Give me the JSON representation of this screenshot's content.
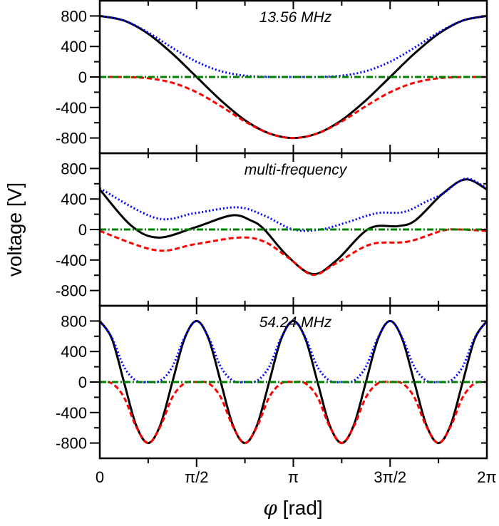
{
  "chart_data": [
    {
      "type": "line",
      "title": "13.56 MHz",
      "x_unit": "pi rad",
      "ylim": [
        -1000,
        1000
      ],
      "series": [
        {
          "color": "#000000",
          "style": "solid",
          "x": [
            0,
            0.125,
            0.25,
            0.375,
            0.5,
            0.625,
            0.75,
            0.875,
            1,
            1.125,
            1.25,
            1.375,
            1.5,
            1.625,
            1.75,
            1.875,
            2
          ],
          "y": [
            800,
            739,
            566,
            306,
            0,
            -306,
            -566,
            -739,
            -800,
            -739,
            -566,
            -306,
            0,
            306,
            566,
            739,
            800
          ]
        },
        {
          "color": "#0000ff",
          "style": "dotted",
          "x": [
            0,
            0.125,
            0.25,
            0.375,
            0.5,
            0.625,
            0.75,
            0.875,
            1,
            1.125,
            1.25,
            1.375,
            1.5,
            1.625,
            1.75,
            1.875,
            2
          ],
          "y": [
            800,
            740,
            583,
            382,
            200,
            76,
            17,
            1,
            0,
            1,
            17,
            76,
            200,
            382,
            583,
            740,
            800
          ]
        },
        {
          "color": "#ff0000",
          "style": "dashed",
          "x": [
            0,
            0.125,
            0.25,
            0.375,
            0.5,
            0.625,
            0.75,
            0.875,
            1,
            1.125,
            1.25,
            1.375,
            1.5,
            1.625,
            1.75,
            1.875,
            2
          ],
          "y": [
            0,
            -1,
            -17,
            -76,
            -200,
            -382,
            -583,
            -740,
            -800,
            -740,
            -583,
            -382,
            -200,
            -76,
            -17,
            -1,
            0
          ]
        },
        {
          "color": "#008000",
          "style": "dashdot",
          "x": [
            0,
            2
          ],
          "y": [
            0,
            0
          ]
        }
      ]
    },
    {
      "type": "line",
      "title": "multi-frequency",
      "x_unit": "pi rad",
      "ylim": [
        -1000,
        1000
      ],
      "series": [
        {
          "color": "#000000",
          "style": "solid",
          "x": [
            0,
            0.16,
            0.3,
            0.49,
            0.68,
            0.78,
            0.85,
            0.97,
            1.1,
            1.22,
            1.39,
            1.54,
            1.63,
            1.77,
            1.89,
            2.0
          ],
          "y": [
            525,
            56,
            -106,
            25,
            185,
            119,
            0,
            -350,
            -584,
            -412,
            10,
            44,
            119,
            466,
            657,
            525
          ]
        },
        {
          "color": "#0000ff",
          "style": "dotted",
          "x": [
            0,
            0.29,
            0.49,
            0.71,
            0.85,
            1.0,
            1.14,
            1.27,
            1.43,
            1.57,
            1.69,
            1.77,
            1.89,
            2.0
          ],
          "y": [
            540,
            150,
            213,
            291,
            182,
            0,
            0,
            88,
            213,
            229,
            370,
            466,
            666,
            540
          ]
        },
        {
          "color": "#ff0000",
          "style": "dashed",
          "x": [
            0,
            0.29,
            0.49,
            0.72,
            0.85,
            0.98,
            1.1,
            1.22,
            1.4,
            1.59,
            1.77,
            1.86,
            2.0
          ],
          "y": [
            -20,
            -272,
            -194,
            -106,
            -160,
            -381,
            -594,
            -444,
            -194,
            -160,
            -15,
            0,
            -20
          ]
        },
        {
          "color": "#008000",
          "style": "dashdot",
          "x": [
            0,
            2
          ],
          "y": [
            0,
            0
          ]
        }
      ]
    },
    {
      "type": "line",
      "title": "54.24 MHz",
      "x_unit": "pi rad",
      "ylim": [
        -1000,
        1000
      ],
      "series": [
        {
          "color": "#000000",
          "style": "solid",
          "x": [
            0,
            0.0625,
            0.125,
            0.1875,
            0.25,
            0.3125,
            0.375,
            0.4375,
            0.5,
            0.5625,
            0.625,
            0.6875,
            0.75,
            0.8125,
            0.875,
            0.9375,
            1,
            1.0625,
            1.125,
            1.1875,
            1.25,
            1.3125,
            1.375,
            1.4375,
            1.5,
            1.5625,
            1.625,
            1.6875,
            1.75,
            1.8125,
            1.875,
            1.9375,
            2
          ],
          "y": [
            800,
            566,
            0,
            -566,
            -800,
            -566,
            0,
            566,
            800,
            566,
            0,
            -566,
            -800,
            -566,
            0,
            566,
            800,
            566,
            0,
            -566,
            -800,
            -566,
            0,
            566,
            800,
            566,
            0,
            -566,
            -800,
            -566,
            0,
            566,
            800
          ]
        },
        {
          "color": "#0000ff",
          "style": "dotted",
          "x": [
            0,
            0.0625,
            0.125,
            0.1875,
            0.25,
            0.3125,
            0.375,
            0.4375,
            0.5,
            0.5625,
            0.625,
            0.6875,
            0.75,
            0.8125,
            0.875,
            0.9375,
            1,
            1.0625,
            1.125,
            1.1875,
            1.25,
            1.3125,
            1.375,
            1.4375,
            1.5,
            1.5625,
            1.625,
            1.6875,
            1.75,
            1.8125,
            1.875,
            1.9375,
            2
          ],
          "y": [
            800,
            583,
            200,
            17,
            0,
            17,
            200,
            583,
            800,
            583,
            200,
            17,
            0,
            17,
            200,
            583,
            800,
            583,
            200,
            17,
            0,
            17,
            200,
            583,
            800,
            583,
            200,
            17,
            0,
            17,
            200,
            583,
            800
          ]
        },
        {
          "color": "#ff0000",
          "style": "dashed",
          "x": [
            0,
            0.0625,
            0.125,
            0.1875,
            0.25,
            0.3125,
            0.375,
            0.4375,
            0.5,
            0.5625,
            0.625,
            0.6875,
            0.75,
            0.8125,
            0.875,
            0.9375,
            1,
            1.0625,
            1.125,
            1.1875,
            1.25,
            1.3125,
            1.375,
            1.4375,
            1.5,
            1.5625,
            1.625,
            1.6875,
            1.75,
            1.8125,
            1.875,
            1.9375,
            2
          ],
          "y": [
            0,
            -17,
            -200,
            -583,
            -800,
            -583,
            -200,
            -17,
            0,
            -17,
            -200,
            -583,
            -800,
            -583,
            -200,
            -17,
            0,
            -17,
            -200,
            -583,
            -800,
            -583,
            -200,
            -17,
            0,
            -17,
            -200,
            -583,
            -800,
            -583,
            -200,
            -17,
            0
          ]
        },
        {
          "color": "#008000",
          "style": "dashdot",
          "x": [
            0,
            2
          ],
          "y": [
            0,
            0
          ]
        }
      ]
    }
  ],
  "axes": {
    "ylabel": "voltage [V]",
    "xlabel_symbol": "φ",
    "xlabel_unit": " [rad]",
    "y_ticks": [
      800,
      400,
      0,
      -400,
      -800
    ],
    "y_tick_labels": [
      "800",
      "400",
      "0",
      "-400",
      "-800"
    ],
    "x_ticks": [
      0,
      0.5,
      1,
      1.5,
      2
    ],
    "x_tick_labels": [
      "0",
      "π/2",
      "π",
      "3π/2",
      "2π"
    ],
    "xlim": [
      0,
      2
    ]
  }
}
